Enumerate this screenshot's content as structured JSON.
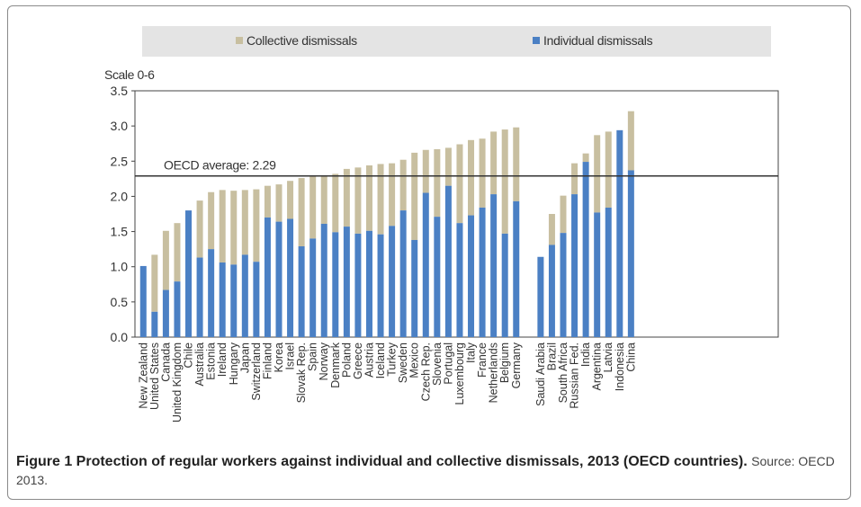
{
  "colors": {
    "collective": "#c8bfa0",
    "individual": "#4b80c4",
    "legend_bg": "#e4e4e4",
    "axis": "#444444",
    "average_line": "#333333"
  },
  "legend": {
    "collective_label": "Collective dismissals",
    "individual_label": "Individual dismissals"
  },
  "scale_label": "Scale 0-6",
  "caption": {
    "title": "Figure 1 Protection of regular workers against individual and collective dismissals, 2013 (OECD countries).",
    "source": "Source: OECD 2013."
  },
  "chart_data": {
    "type": "bar",
    "stacked": true,
    "ylim": [
      0,
      3.5
    ],
    "yticks": [
      "0.0",
      "0.5",
      "1.0",
      "1.5",
      "2.0",
      "2.5",
      "3.0",
      "3.5"
    ],
    "average": {
      "value": 2.29,
      "label": "OECD average: 2.29"
    },
    "groups": [
      {
        "categories": [
          "New Zealand",
          "United States",
          "Canada",
          "United Kingdom",
          "Chile",
          "Australia",
          "Estonia",
          "Ireland",
          "Hungary",
          "Japan",
          "Switzerland",
          "Finland",
          "Korea",
          "Israel",
          "Slovak Rep.",
          "Spain",
          "Norway",
          "Denmark",
          "Poland",
          "Greece",
          "Austria",
          "Iceland",
          "Turkey",
          "Sweden",
          "Mexico",
          "Czech Rep.",
          "Slovenia",
          "Portugal",
          "Luxembourg",
          "Italy",
          "France",
          "Netherlands",
          "Belgium",
          "Germany"
        ],
        "individual": [
          1.01,
          0.36,
          0.67,
          0.79,
          1.8,
          1.13,
          1.25,
          1.06,
          1.03,
          1.17,
          1.07,
          1.7,
          1.64,
          1.68,
          1.29,
          1.4,
          1.61,
          1.49,
          1.57,
          1.47,
          1.51,
          1.46,
          1.58,
          1.8,
          1.38,
          2.05,
          1.71,
          2.15,
          1.62,
          1.73,
          1.84,
          2.03,
          1.47,
          1.93
        ],
        "total": [
          1.01,
          1.17,
          1.51,
          1.62,
          1.8,
          1.94,
          2.06,
          2.09,
          2.08,
          2.09,
          2.1,
          2.15,
          2.17,
          2.22,
          2.26,
          2.28,
          2.3,
          2.32,
          2.39,
          2.41,
          2.44,
          2.46,
          2.47,
          2.52,
          2.62,
          2.66,
          2.67,
          2.69,
          2.74,
          2.8,
          2.82,
          2.92,
          2.95,
          2.98
        ]
      },
      {
        "categories": [
          "Saudi Arabia",
          "Brazil",
          "South Africa",
          "Russian Fed.",
          "India",
          "Argentina",
          "Latvia",
          "Indonesia",
          "China"
        ],
        "individual": [
          1.14,
          1.31,
          1.48,
          2.03,
          2.49,
          1.77,
          1.84,
          2.94,
          2.37
        ],
        "total": [
          1.14,
          1.75,
          2.01,
          2.47,
          2.61,
          2.87,
          2.92,
          2.94,
          3.21
        ]
      }
    ]
  }
}
